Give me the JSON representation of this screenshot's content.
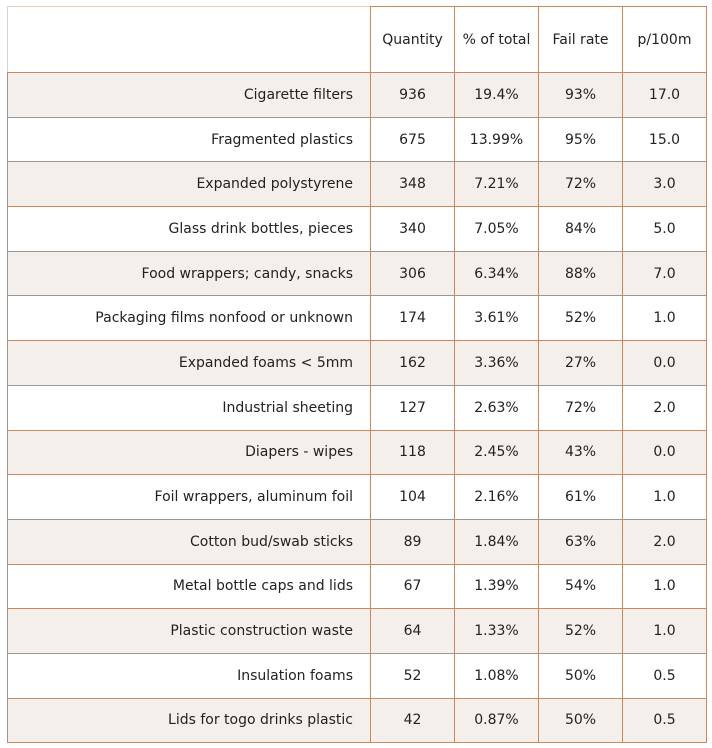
{
  "table": {
    "columns": [
      "",
      "Quantity",
      "% of total",
      "Fail rate",
      "p/100m"
    ],
    "rows": [
      {
        "item": "Cigarette filters",
        "quantity": "936",
        "pct_total": "19.4%",
        "fail_rate": "93%",
        "p100m": "17.0"
      },
      {
        "item": "Fragmented plastics",
        "quantity": "675",
        "pct_total": "13.99%",
        "fail_rate": "95%",
        "p100m": "15.0"
      },
      {
        "item": "Expanded polystyrene",
        "quantity": "348",
        "pct_total": "7.21%",
        "fail_rate": "72%",
        "p100m": "3.0"
      },
      {
        "item": "Glass drink bottles, pieces",
        "quantity": "340",
        "pct_total": "7.05%",
        "fail_rate": "84%",
        "p100m": "5.0"
      },
      {
        "item": "Food wrappers; candy, snacks",
        "quantity": "306",
        "pct_total": "6.34%",
        "fail_rate": "88%",
        "p100m": "7.0"
      },
      {
        "item": "Packaging films nonfood or unknown",
        "quantity": "174",
        "pct_total": "3.61%",
        "fail_rate": "52%",
        "p100m": "1.0"
      },
      {
        "item": "Expanded foams < 5mm",
        "quantity": "162",
        "pct_total": "3.36%",
        "fail_rate": "27%",
        "p100m": "0.0"
      },
      {
        "item": "Industrial sheeting",
        "quantity": "127",
        "pct_total": "2.63%",
        "fail_rate": "72%",
        "p100m": "2.0"
      },
      {
        "item": "Diapers - wipes",
        "quantity": "118",
        "pct_total": "2.45%",
        "fail_rate": "43%",
        "p100m": "0.0"
      },
      {
        "item": "Foil wrappers, aluminum foil",
        "quantity": "104",
        "pct_total": "2.16%",
        "fail_rate": "61%",
        "p100m": "1.0"
      },
      {
        "item": "Cotton bud/swab sticks",
        "quantity": "89",
        "pct_total": "1.84%",
        "fail_rate": "63%",
        "p100m": "2.0"
      },
      {
        "item": "Metal bottle caps and lids",
        "quantity": "67",
        "pct_total": "1.39%",
        "fail_rate": "54%",
        "p100m": "1.0"
      },
      {
        "item": "Plastic construction waste",
        "quantity": "64",
        "pct_total": "1.33%",
        "fail_rate": "52%",
        "p100m": "1.0"
      },
      {
        "item": "Insulation foams",
        "quantity": "52",
        "pct_total": "1.08%",
        "fail_rate": "50%",
        "p100m": "0.5"
      },
      {
        "item": "Lids for togo drinks plastic",
        "quantity": "42",
        "pct_total": "0.87%",
        "fail_rate": "50%",
        "p100m": "0.5"
      }
    ]
  },
  "colors": {
    "border": "#b58e78",
    "stripe": "#f5efeb",
    "text": "#222222"
  }
}
